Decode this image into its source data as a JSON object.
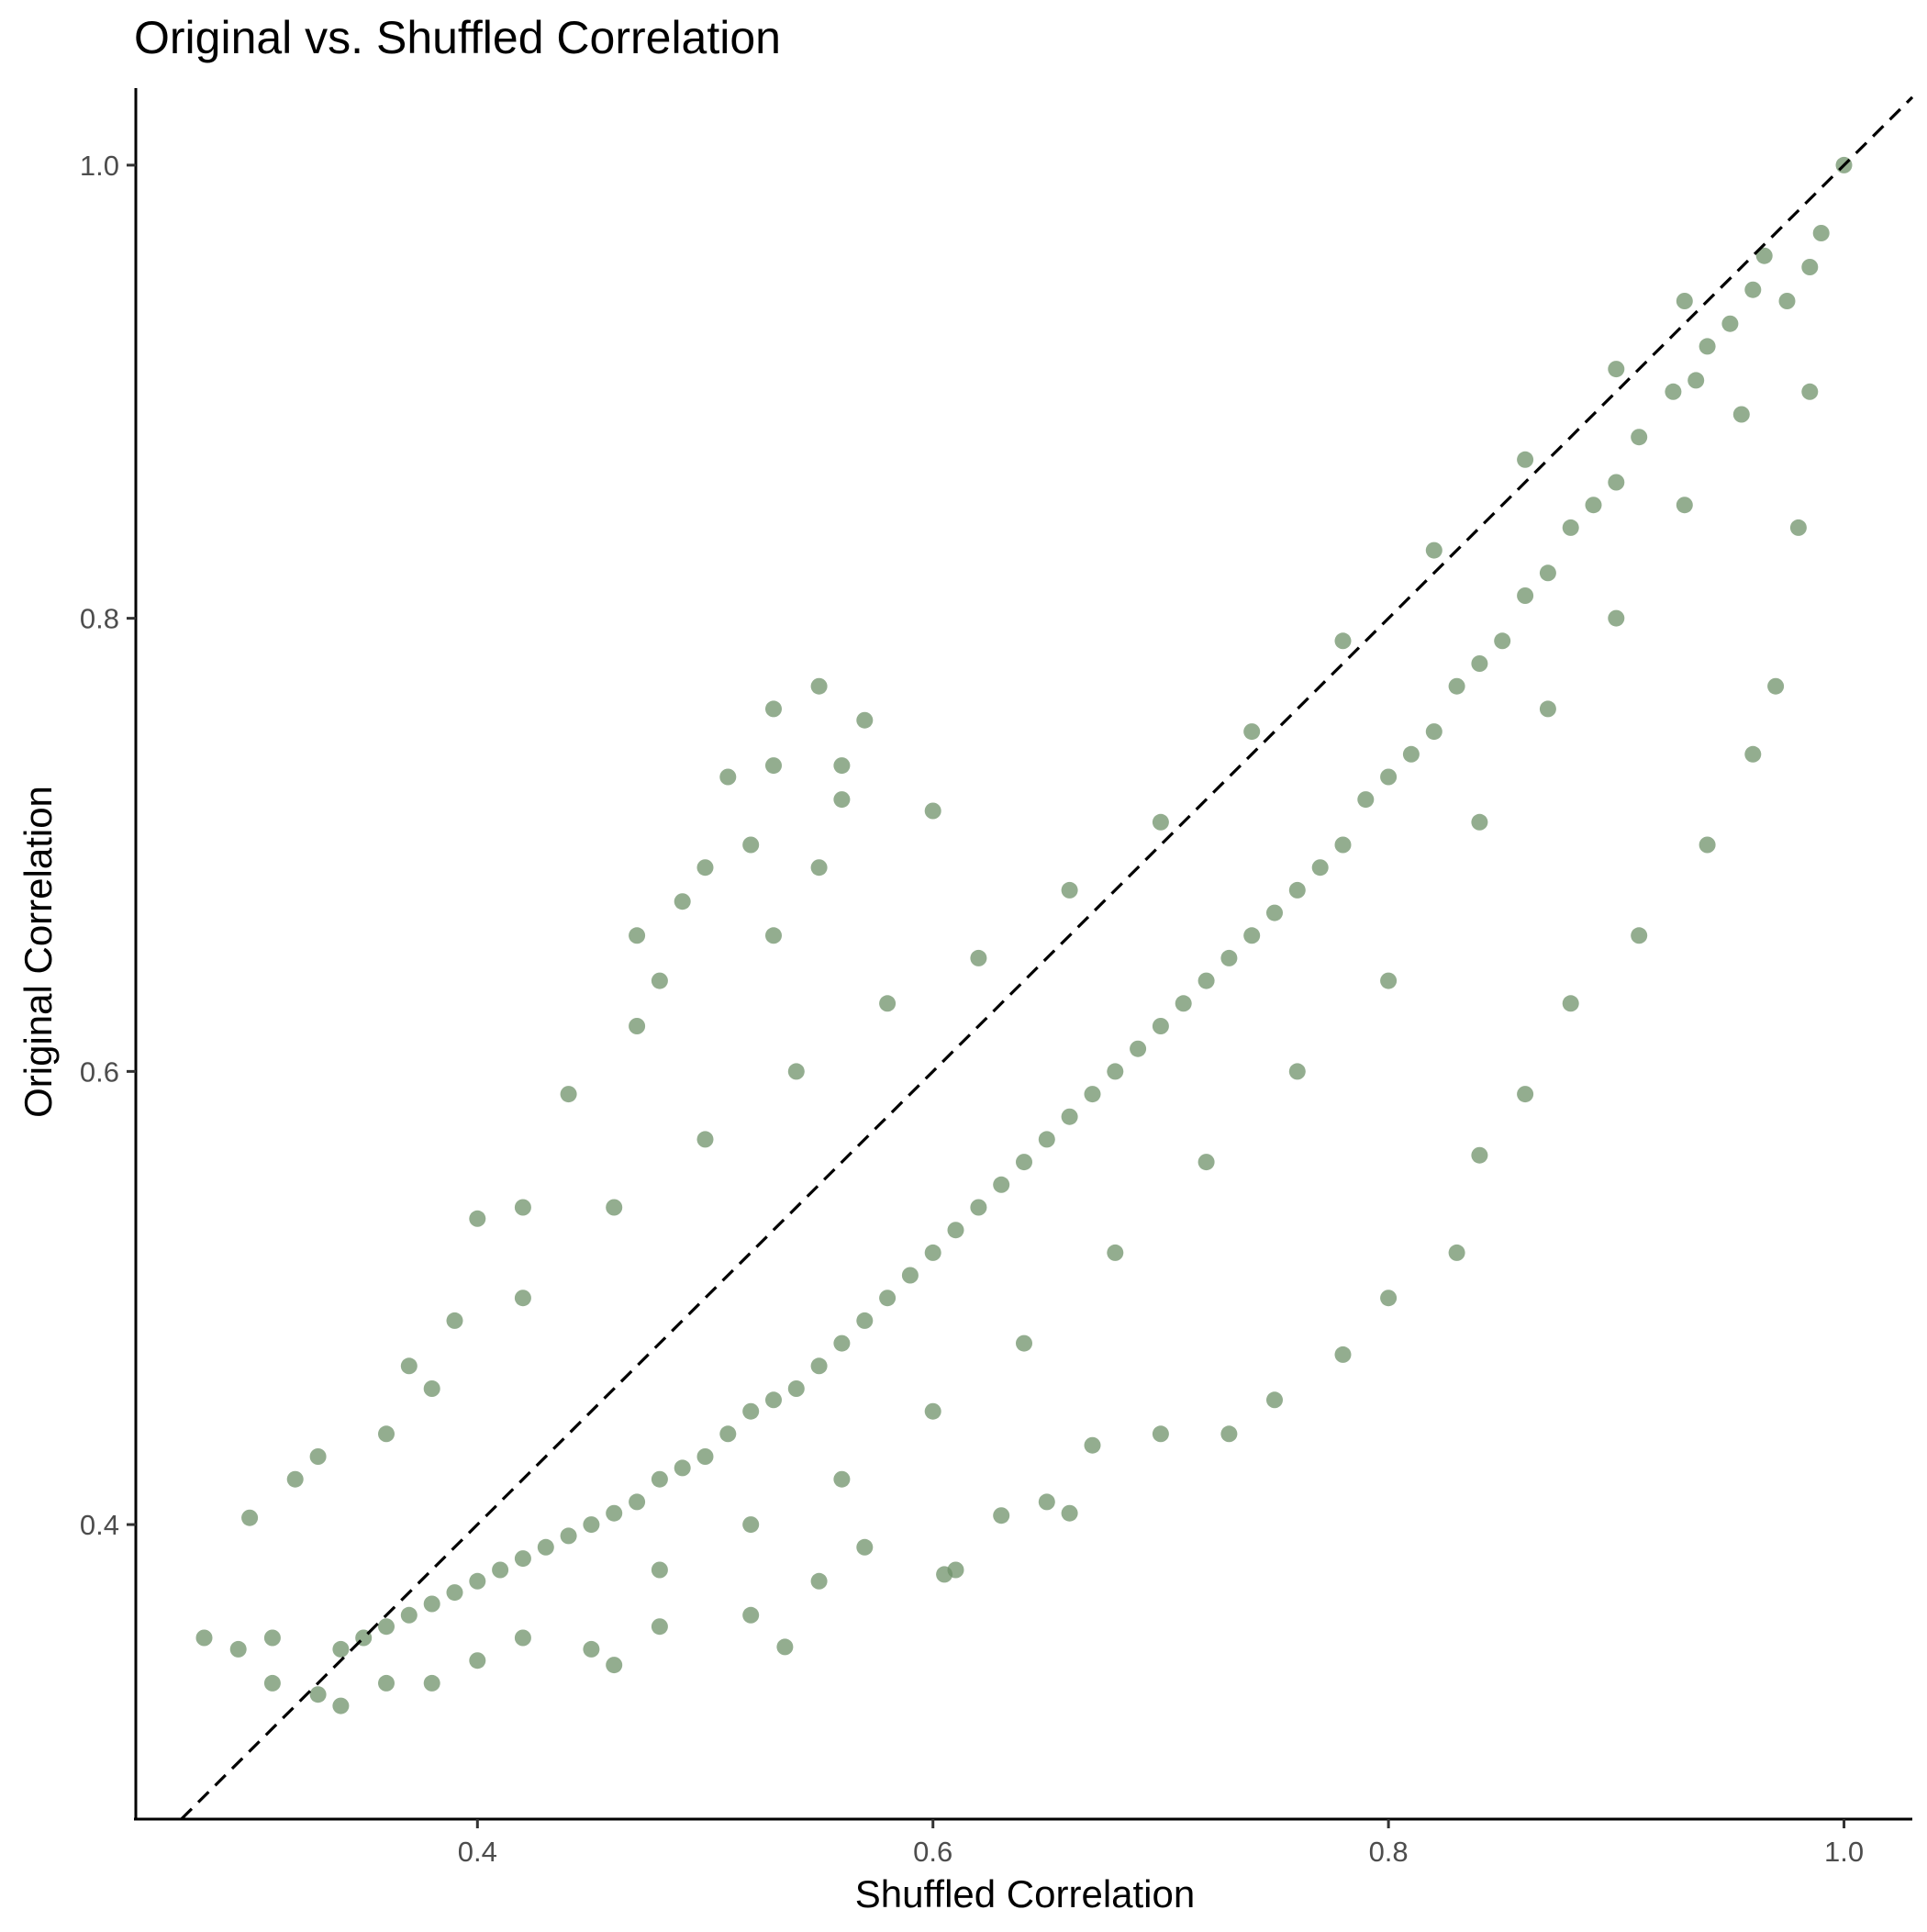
{
  "chart_data": {
    "type": "scatter",
    "title": "Original vs. Shuffled Correlation",
    "xlabel": "Shuffled Correlation",
    "ylabel": "Original Correlation",
    "xlim": [
      0.25,
      1.03
    ],
    "ylim": [
      0.27,
      1.034
    ],
    "xticks": [
      0.4,
      0.6,
      0.8,
      1.0
    ],
    "xtick_labels": [
      "0.4",
      "0.6",
      "0.8",
      "1.0"
    ],
    "yticks": [
      0.4,
      0.6,
      0.8,
      1.0
    ],
    "ytick_labels": [
      "0.4",
      "0.6",
      "0.8",
      "1.0"
    ],
    "grid": false,
    "legend": "none",
    "point_color": "#6f9169",
    "point_opacity": 0.75,
    "reference_line": {
      "slope": 1,
      "intercept": 0,
      "style": "dashed",
      "color": "#000000"
    },
    "series": [
      {
        "points": [
          [
            1.0,
            1.0
          ],
          [
            0.99,
            0.97
          ],
          [
            0.985,
            0.955
          ],
          [
            0.975,
            0.94
          ],
          [
            0.965,
            0.96
          ],
          [
            0.96,
            0.945
          ],
          [
            0.95,
            0.93
          ],
          [
            0.94,
            0.92
          ],
          [
            0.935,
            0.905
          ],
          [
            0.925,
            0.9
          ],
          [
            0.91,
            0.88
          ],
          [
            0.9,
            0.86
          ],
          [
            0.89,
            0.85
          ],
          [
            0.88,
            0.84
          ],
          [
            0.87,
            0.82
          ],
          [
            0.86,
            0.81
          ],
          [
            0.85,
            0.79
          ],
          [
            0.84,
            0.78
          ],
          [
            0.83,
            0.77
          ],
          [
            0.82,
            0.75
          ],
          [
            0.81,
            0.74
          ],
          [
            0.8,
            0.73
          ],
          [
            0.79,
            0.72
          ],
          [
            0.78,
            0.7
          ],
          [
            0.77,
            0.69
          ],
          [
            0.76,
            0.68
          ],
          [
            0.75,
            0.67
          ],
          [
            0.74,
            0.66
          ],
          [
            0.73,
            0.65
          ],
          [
            0.72,
            0.64
          ],
          [
            0.71,
            0.63
          ],
          [
            0.7,
            0.62
          ],
          [
            0.69,
            0.61
          ],
          [
            0.68,
            0.6
          ],
          [
            0.67,
            0.59
          ],
          [
            0.66,
            0.58
          ],
          [
            0.65,
            0.57
          ],
          [
            0.64,
            0.56
          ],
          [
            0.63,
            0.55
          ],
          [
            0.62,
            0.54
          ],
          [
            0.61,
            0.53
          ],
          [
            0.6,
            0.52
          ],
          [
            0.59,
            0.51
          ],
          [
            0.58,
            0.5
          ],
          [
            0.57,
            0.49
          ],
          [
            0.56,
            0.48
          ],
          [
            0.55,
            0.47
          ],
          [
            0.54,
            0.46
          ],
          [
            0.53,
            0.455
          ],
          [
            0.52,
            0.45
          ],
          [
            0.51,
            0.44
          ],
          [
            0.5,
            0.43
          ],
          [
            0.49,
            0.425
          ],
          [
            0.48,
            0.42
          ],
          [
            0.47,
            0.41
          ],
          [
            0.46,
            0.405
          ],
          [
            0.45,
            0.4
          ],
          [
            0.44,
            0.395
          ],
          [
            0.43,
            0.39
          ],
          [
            0.42,
            0.385
          ],
          [
            0.41,
            0.38
          ],
          [
            0.4,
            0.375
          ],
          [
            0.39,
            0.37
          ],
          [
            0.38,
            0.365
          ],
          [
            0.37,
            0.36
          ],
          [
            0.36,
            0.355
          ],
          [
            0.35,
            0.35
          ],
          [
            0.34,
            0.345
          ],
          [
            0.955,
            0.89
          ],
          [
            0.93,
            0.85
          ],
          [
            0.9,
            0.8
          ],
          [
            0.87,
            0.76
          ],
          [
            0.84,
            0.71
          ],
          [
            0.8,
            0.64
          ],
          [
            0.76,
            0.6
          ],
          [
            0.72,
            0.56
          ],
          [
            0.68,
            0.52
          ],
          [
            0.64,
            0.48
          ],
          [
            0.6,
            0.45
          ],
          [
            0.56,
            0.42
          ],
          [
            0.52,
            0.4
          ],
          [
            0.48,
            0.38
          ],
          [
            0.93,
            0.94
          ],
          [
            0.9,
            0.91
          ],
          [
            0.86,
            0.87
          ],
          [
            0.82,
            0.83
          ],
          [
            0.78,
            0.79
          ],
          [
            0.74,
            0.75
          ],
          [
            0.7,
            0.71
          ],
          [
            0.66,
            0.68
          ],
          [
            0.62,
            0.65
          ],
          [
            0.58,
            0.63
          ],
          [
            0.54,
            0.6
          ],
          [
            0.5,
            0.57
          ],
          [
            0.46,
            0.54
          ],
          [
            0.42,
            0.5
          ],
          [
            0.38,
            0.46
          ],
          [
            0.36,
            0.44
          ],
          [
            0.55,
            0.77
          ],
          [
            0.53,
            0.76
          ],
          [
            0.57,
            0.755
          ],
          [
            0.51,
            0.73
          ],
          [
            0.53,
            0.735
          ],
          [
            0.56,
            0.72
          ],
          [
            0.52,
            0.7
          ],
          [
            0.55,
            0.69
          ],
          [
            0.5,
            0.69
          ],
          [
            0.49,
            0.675
          ],
          [
            0.53,
            0.66
          ],
          [
            0.47,
            0.66
          ],
          [
            0.48,
            0.64
          ],
          [
            0.47,
            0.62
          ],
          [
            0.44,
            0.59
          ],
          [
            0.42,
            0.54
          ],
          [
            0.4,
            0.535
          ],
          [
            0.39,
            0.49
          ],
          [
            0.37,
            0.47
          ],
          [
            0.33,
            0.43
          ],
          [
            0.32,
            0.42
          ],
          [
            0.3,
            0.403
          ],
          [
            0.28,
            0.35
          ],
          [
            0.295,
            0.345
          ],
          [
            0.31,
            0.35
          ],
          [
            0.31,
            0.33
          ],
          [
            0.33,
            0.325
          ],
          [
            0.34,
            0.32
          ],
          [
            0.36,
            0.33
          ],
          [
            0.38,
            0.33
          ],
          [
            0.4,
            0.34
          ],
          [
            0.42,
            0.35
          ],
          [
            0.45,
            0.345
          ],
          [
            0.46,
            0.338
          ],
          [
            0.48,
            0.355
          ],
          [
            0.52,
            0.36
          ],
          [
            0.535,
            0.346
          ],
          [
            0.55,
            0.375
          ],
          [
            0.57,
            0.39
          ],
          [
            0.61,
            0.38
          ],
          [
            0.605,
            0.378
          ],
          [
            0.63,
            0.404
          ],
          [
            0.65,
            0.41
          ],
          [
            0.67,
            0.435
          ],
          [
            0.7,
            0.44
          ],
          [
            0.73,
            0.44
          ],
          [
            0.75,
            0.455
          ],
          [
            0.78,
            0.475
          ],
          [
            0.8,
            0.5
          ],
          [
            0.83,
            0.52
          ],
          [
            0.84,
            0.563
          ],
          [
            0.86,
            0.59
          ],
          [
            0.88,
            0.63
          ],
          [
            0.91,
            0.66
          ],
          [
            0.94,
            0.7
          ],
          [
            0.96,
            0.74
          ],
          [
            0.97,
            0.77
          ],
          [
            0.98,
            0.84
          ],
          [
            0.985,
            0.9
          ],
          [
            0.66,
            0.405
          ],
          [
            0.56,
            0.735
          ],
          [
            0.6,
            0.715
          ]
        ]
      }
    ]
  }
}
